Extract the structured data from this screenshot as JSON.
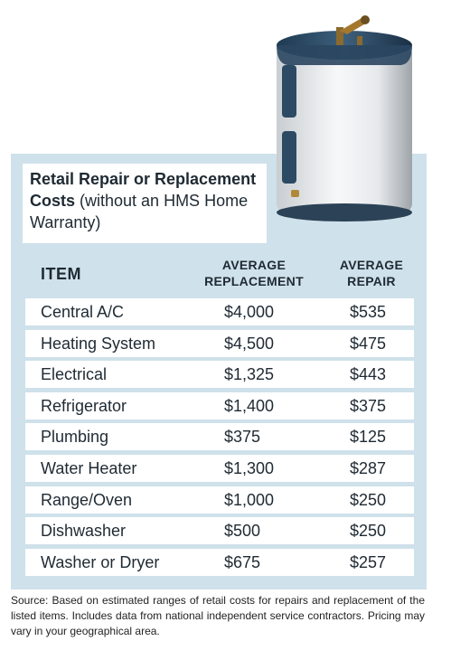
{
  "title": {
    "bold_line": "Retail Repair or Replacement Costs",
    "normal": " (without an HMS Home Warranty)"
  },
  "table": {
    "headers": {
      "item": "ITEM",
      "replacement_line1": "AVERAGE",
      "replacement_line2": "REPLACEMENT",
      "repair_line1": "AVERAGE",
      "repair_line2": "REPAIR"
    },
    "rows": [
      {
        "item": "Central A/C",
        "replacement": "$4,000",
        "repair": "$535"
      },
      {
        "item": "Heating System",
        "replacement": "$4,500",
        "repair": "$475"
      },
      {
        "item": "Electrical",
        "replacement": "$1,325",
        "repair": "$443"
      },
      {
        "item": "Refrigerator",
        "replacement": "$1,400",
        "repair": "$375"
      },
      {
        "item": "Plumbing",
        "replacement": "$375",
        "repair": "$125"
      },
      {
        "item": "Water Heater",
        "replacement": "$1,300",
        "repair": "$287"
      },
      {
        "item": "Range/Oven",
        "replacement": "$1,000",
        "repair": "$250"
      },
      {
        "item": "Dishwasher",
        "replacement": "$500",
        "repair": "$250"
      },
      {
        "item": "Washer or Dryer",
        "replacement": "$675",
        "repair": "$257"
      }
    ]
  },
  "source": "Source: Based on estimated ranges of retail costs for repairs and replacement of the listed items. Includes data from national independent service contractors. Pricing may vary in your geographical area.",
  "colors": {
    "panel": "#cfe1ea",
    "row": "#ffffff",
    "text": "#1f2a33"
  },
  "image": "water-heater"
}
